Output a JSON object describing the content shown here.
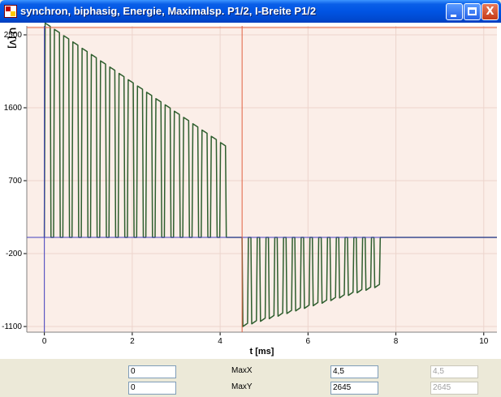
{
  "window": {
    "title": "synchron, biphasig, Energie, Maximalsp. P1/2, I-Breite P1/2",
    "buttons": {
      "minimize": "_",
      "maximize": "□",
      "close": "X"
    }
  },
  "chart_data": {
    "type": "line",
    "ylabel": "U [V]",
    "xlabel": "t [ms]",
    "xlim": [
      -0.4,
      10.3
    ],
    "ylim": [
      -1170,
      2610
    ],
    "x_ticks": [
      "0",
      "2",
      "4",
      "6",
      "8",
      "10"
    ],
    "x_tick_values": [
      0,
      2,
      4,
      6,
      8,
      10
    ],
    "y_ticks": [
      "2500",
      "1600",
      "700",
      "-200",
      "-1100"
    ],
    "y_tick_values": [
      2500,
      1600,
      700,
      -200,
      -1100
    ],
    "grid": true,
    "colors": {
      "trace": "#2e5e2e",
      "cursor_red": "#e06040",
      "cursor_blue": "#4040c0",
      "plot_bg": "#fbeee8",
      "grid": "#ecd4cc"
    },
    "cursors": {
      "vertical_x": 4.5,
      "horizontal_y": 2645,
      "baseline_y": 0
    },
    "series": [
      {
        "pulses_positive": {
          "start": 0.0,
          "end": 4.2,
          "count": 20,
          "peak_start": 2645,
          "peak_end": 1170
        },
        "pulses_negative": {
          "start": 4.5,
          "end": 7.7,
          "count": 16,
          "peak_start": -1100,
          "peak_end": -620
        }
      }
    ]
  },
  "controls": {
    "row1": {
      "min_value": "0",
      "label": "MaxX",
      "max_value": "4,5",
      "extra_value": "4,5"
    },
    "row2": {
      "min_value": "0",
      "label": "MaxY",
      "max_value": "2645",
      "extra_value": "2645"
    }
  }
}
